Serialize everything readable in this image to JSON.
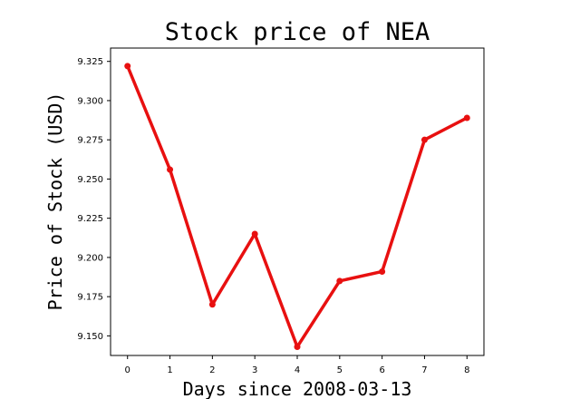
{
  "chart_data": {
    "type": "line",
    "title": "Stock price of NEA",
    "xlabel": "Days since 2008-03-13",
    "ylabel": "Price of Stock (USD)",
    "x": [
      0,
      1,
      2,
      3,
      4,
      5,
      6,
      7,
      8
    ],
    "xticks": [
      "0",
      "1",
      "2",
      "3",
      "4",
      "5",
      "6",
      "7",
      "8"
    ],
    "xlim": [
      -0.4,
      8.4
    ],
    "yticks": [
      "9.150",
      "9.175",
      "9.200",
      "9.225",
      "9.250",
      "9.275",
      "9.300",
      "9.325"
    ],
    "ylim": [
      9.1375,
      9.3335
    ],
    "series": [
      {
        "values": [
          9.322,
          9.256,
          9.17,
          9.215,
          9.143,
          9.185,
          9.191,
          9.275,
          9.289
        ]
      }
    ],
    "line_color": "#e81010",
    "grid": false,
    "legend": "none"
  }
}
